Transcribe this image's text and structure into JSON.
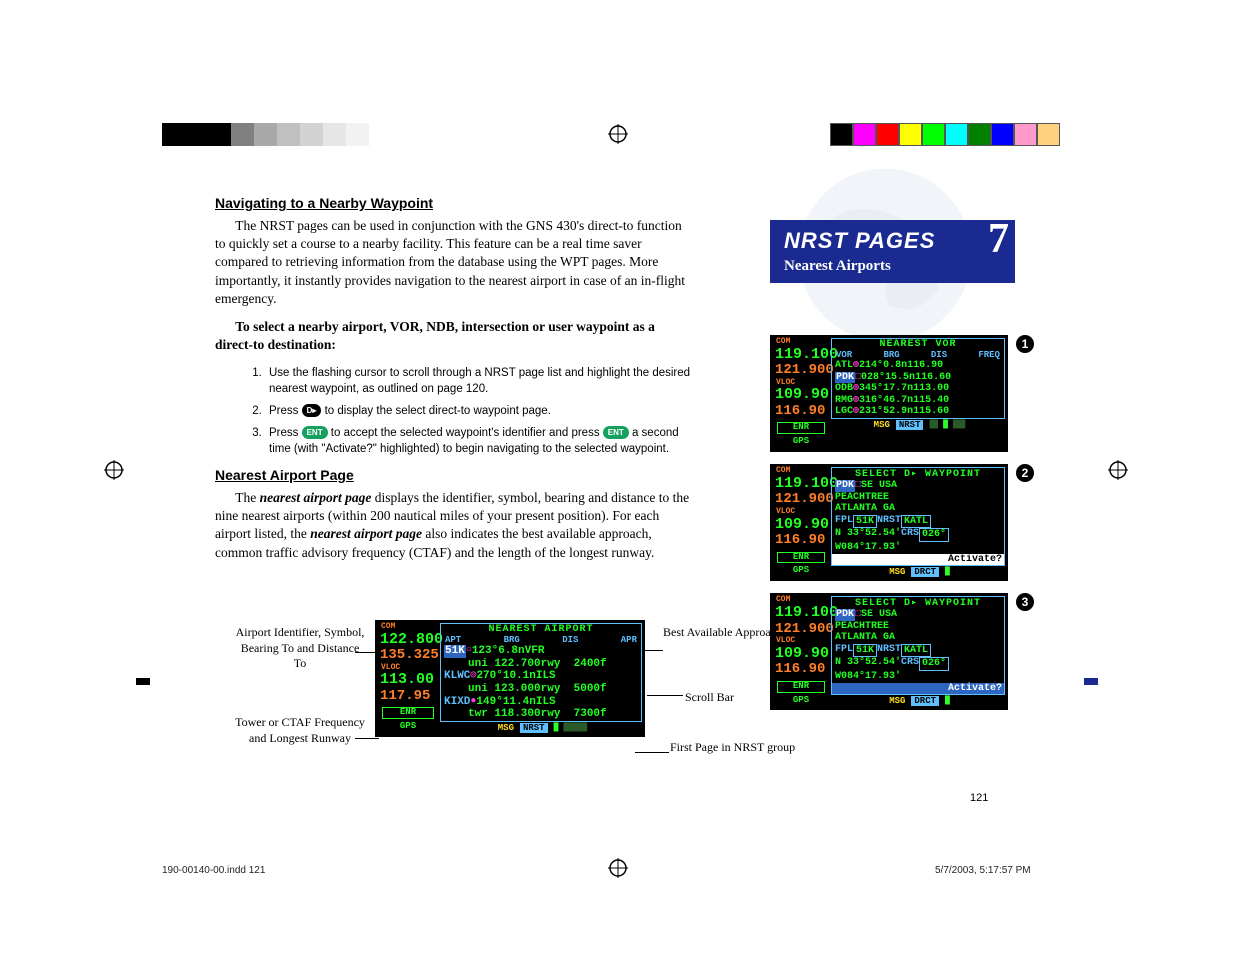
{
  "registration": {
    "left_colors": [
      "#000000",
      "#000000",
      "#000000",
      "#808080",
      "#a9a9a9",
      "#c0c0c0",
      "#d3d3d3",
      "#e6e6e6",
      "#f2f2f2",
      "#ffffff"
    ],
    "right_colors": [
      "#000000",
      "#ff00ff",
      "#ff0000",
      "#ffff00",
      "#00ff00",
      "#00ffff",
      "#008000",
      "#0000ff",
      "#ff9acb",
      "#ffd080"
    ]
  },
  "headings": {
    "h1a": "Navigating to a Nearby Waypoint",
    "h1b": "Nearest Airport Page"
  },
  "paragraphs": {
    "p1": "The NRST pages can be used in conjunction with the GNS 430's direct-to function to quickly set a course to a nearby facility. This feature can be a real time saver compared to retrieving information from the database using the WPT pages. More importantly, it instantly provides navigation to the nearest airport in case of an in-flight emergency.",
    "p2": "To select a nearby airport, VOR, NDB, intersection or user waypoint as a direct-to destination:",
    "p3a": "The ",
    "p3b": "nearest airport page",
    "p3c": " displays the identifier, symbol, bearing and distance to the nine nearest airports (within 200 nautical miles of your present position). For each airport listed, the ",
    "p3d": "nearest airport page",
    "p3e": " also indicates the best available approach, common traffic advisory frequency (CTAF) and the length of the longest runway."
  },
  "list": {
    "i1": "Use the flashing cursor to scroll through a NRST page list and highlight the desired nearest waypoint, as outlined on page 120.",
    "i2a": "Press ",
    "i2b": " to display the select direct-to waypoint page.",
    "i3a": "Press ",
    "i3b": " to accept the selected waypoint's identifier and press ",
    "i3c": " a second time (with \"Activate?\" highlighted) to begin navigating to the selected waypoint."
  },
  "keycaps": {
    "dto": "D▸",
    "ent": "ENT"
  },
  "title_card": {
    "main": "NRST PAGES",
    "sub": "Nearest Airports",
    "num": "7"
  },
  "callouts": {
    "l1": "Airport Identifier, Symbol, Bearing To and Distance To",
    "l2": "Tower or CTAF Frequency and Longest Runway",
    "r1": "Best Available Approach",
    "r2": "Scroll Bar",
    "r3": "First Page in NRST group"
  },
  "screens_left": {
    "title": "NEAREST AIRPORT",
    "hdr": [
      "APT",
      "BRG",
      "DIS",
      "APR"
    ],
    "com_on": "122.800",
    "com_sb": "135.325",
    "vloc_on": "113.00",
    "vloc_sb": "117.95",
    "rows": [
      {
        "id": "51K",
        "sym": "○",
        "brg": "123°",
        "dis": "6.8n",
        "apr": "VFR",
        "f": "uni 122.700",
        "rwy": "rwy  2400f"
      },
      {
        "id": "KLWC",
        "sym": "◎",
        "brg": "270°",
        "dis": "10.1n",
        "apr": "ILS",
        "f": "uni 123.000",
        "rwy": "rwy  5000f"
      },
      {
        "id": "KIXD",
        "sym": "●",
        "brg": "149°",
        "dis": "11.4n",
        "apr": "ILS",
        "f": "twr 118.300",
        "rwy": "rwy  7300f"
      }
    ],
    "status": {
      "msg": "MSG",
      "tag": "NRST"
    }
  },
  "screens_right": {
    "com_on": "119.100",
    "com_sb": "121.900",
    "vloc_on": "109.90",
    "vloc_sb": "116.90",
    "s1": {
      "title": "NEAREST VOR",
      "hdr": [
        "VOR",
        "BRG",
        "DIS",
        "FREQ"
      ],
      "rows": [
        {
          "id": "ATL",
          "sym": "⊕",
          "brg": "214°",
          "dis": "0.8n",
          "freq": "116.90"
        },
        {
          "id": "PDK",
          "sym": "□",
          "brg": "028°",
          "dis": "15.5n",
          "freq": "116.60",
          "hi": true
        },
        {
          "id": "ODB",
          "sym": "⊕",
          "brg": "345°",
          "dis": "17.7n",
          "freq": "113.00"
        },
        {
          "id": "RMG",
          "sym": "⊕",
          "brg": "316°",
          "dis": "46.7n",
          "freq": "115.40"
        },
        {
          "id": "LGC",
          "sym": "⊕",
          "brg": "231°",
          "dis": "52.9n",
          "freq": "115.60"
        }
      ],
      "status": {
        "msg": "MSG",
        "tag": "NRST"
      }
    },
    "s23": {
      "title": "SELECT  D▸ WAYPOINT",
      "l1a": "PDK",
      "l1b": "□",
      "l1c": "SE USA",
      "l2": "PEACHTREE",
      "l3": "ATLANTA GA",
      "fpl_lbl": "FPL",
      "fpl_val": "51K",
      "nrst_lbl": "NRST",
      "nrst_val": "KATL",
      "lat": "N 33°52.54'",
      "lon": "W084°17.93'",
      "crs_lbl": "CRS",
      "crs_val": "026°",
      "activate": "Activate?",
      "status": {
        "msg": "MSG",
        "tag": "DRCT"
      }
    }
  },
  "footer": {
    "pgnum": "121",
    "left": "190-00140-00.indd   121",
    "right": "5/7/2003, 5:17:57 PM"
  },
  "colors": {
    "brand_blue": "#1a2a91",
    "screen_green": "#22ff22",
    "screen_cyan": "#5fbfff",
    "screen_orange": "#ff7f27",
    "highlight_blue": "#2c66c0",
    "magenta": "#ff3cd4"
  }
}
